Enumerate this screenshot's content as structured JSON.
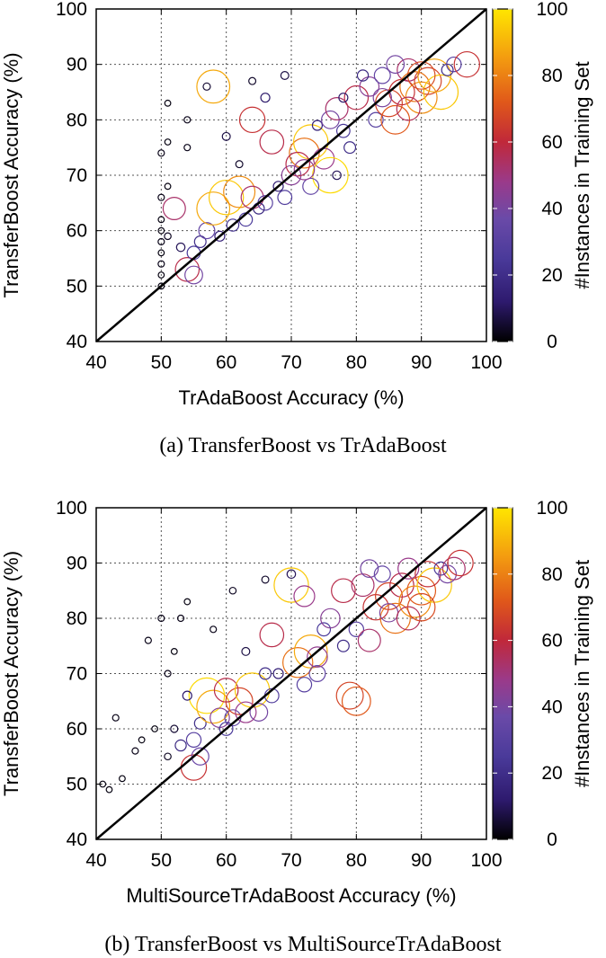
{
  "colorbar": {
    "label": "#Instances in Training Set",
    "ticks": [
      0,
      20,
      40,
      60,
      80,
      100
    ],
    "stops": [
      "#000000",
      "#2e1a6e",
      "#4a3a9a",
      "#6a4aa8",
      "#9a3a8a",
      "#c0283a",
      "#e0581a",
      "#f39a10",
      "#ffe600"
    ]
  },
  "charts": [
    {
      "caption": "(a)  TransferBoost vs TrAdaBoost",
      "xlabel": "TrAdaBoost Accuracy (%)",
      "ylabel": "TransferBoost Accuracy (%)",
      "xticks": [
        40,
        50,
        60,
        70,
        80,
        90,
        100
      ],
      "yticks": [
        40,
        50,
        60,
        70,
        80,
        90,
        100
      ]
    },
    {
      "caption": "(b)  TransferBoost vs MultiSourceTrAdaBoost",
      "xlabel": "MultiSourceTrAdaBoost Accuracy (%)",
      "ylabel": "TransferBoost Accuracy (%)",
      "xticks": [
        40,
        50,
        60,
        70,
        80,
        90,
        100
      ],
      "yticks": [
        40,
        50,
        60,
        70,
        80,
        90,
        100
      ]
    }
  ],
  "chart_data": [
    {
      "type": "scatter",
      "title": "",
      "xlabel": "TrAdaBoost Accuracy (%)",
      "ylabel": "TransferBoost Accuracy (%)",
      "xlim": [
        40,
        100
      ],
      "ylim": [
        40,
        100
      ],
      "grid": true,
      "reference_line": "y = x",
      "color_scale": {
        "label": "#Instances in Training Set",
        "range": [
          0,
          100
        ]
      },
      "points": [
        {
          "x": 50,
          "y": 50,
          "n": 2
        },
        {
          "x": 50,
          "y": 52,
          "n": 2
        },
        {
          "x": 50,
          "y": 54,
          "n": 3
        },
        {
          "x": 50,
          "y": 56,
          "n": 2
        },
        {
          "x": 50,
          "y": 58,
          "n": 3
        },
        {
          "x": 50,
          "y": 60,
          "n": 2
        },
        {
          "x": 51,
          "y": 59,
          "n": 4
        },
        {
          "x": 50,
          "y": 62,
          "n": 2
        },
        {
          "x": 50,
          "y": 66,
          "n": 3
        },
        {
          "x": 51,
          "y": 68,
          "n": 2
        },
        {
          "x": 50,
          "y": 74,
          "n": 3
        },
        {
          "x": 51,
          "y": 76,
          "n": 2
        },
        {
          "x": 51,
          "y": 83,
          "n": 2
        },
        {
          "x": 54,
          "y": 80,
          "n": 3
        },
        {
          "x": 54,
          "y": 75,
          "n": 3
        },
        {
          "x": 57,
          "y": 86,
          "n": 6
        },
        {
          "x": 58,
          "y": 86,
          "n": 90
        },
        {
          "x": 64,
          "y": 87,
          "n": 5
        },
        {
          "x": 69,
          "y": 88,
          "n": 8
        },
        {
          "x": 66,
          "y": 84,
          "n": 12
        },
        {
          "x": 54,
          "y": 53,
          "n": 60
        },
        {
          "x": 55,
          "y": 52,
          "n": 40
        },
        {
          "x": 56,
          "y": 58,
          "n": 20
        },
        {
          "x": 57,
          "y": 60,
          "n": 35
        },
        {
          "x": 58,
          "y": 64,
          "n": 90
        },
        {
          "x": 60,
          "y": 66,
          "n": 95
        },
        {
          "x": 62,
          "y": 67,
          "n": 85
        },
        {
          "x": 63,
          "y": 62,
          "n": 25
        },
        {
          "x": 64,
          "y": 66,
          "n": 55
        },
        {
          "x": 66,
          "y": 65,
          "n": 30
        },
        {
          "x": 68,
          "y": 68,
          "n": 15
        },
        {
          "x": 70,
          "y": 70,
          "n": 45
        },
        {
          "x": 72,
          "y": 74,
          "n": 80
        },
        {
          "x": 73,
          "y": 76,
          "n": 95
        },
        {
          "x": 75,
          "y": 73,
          "n": 50
        },
        {
          "x": 76,
          "y": 70,
          "n": 98
        },
        {
          "x": 73,
          "y": 68,
          "n": 35
        },
        {
          "x": 71,
          "y": 72,
          "n": 60
        },
        {
          "x": 74,
          "y": 79,
          "n": 15
        },
        {
          "x": 76,
          "y": 80,
          "n": 40
        },
        {
          "x": 77,
          "y": 82,
          "n": 55
        },
        {
          "x": 78,
          "y": 78,
          "n": 25
        },
        {
          "x": 80,
          "y": 84,
          "n": 60
        },
        {
          "x": 82,
          "y": 86,
          "n": 45
        },
        {
          "x": 83,
          "y": 80,
          "n": 30
        },
        {
          "x": 84,
          "y": 88,
          "n": 35
        },
        {
          "x": 85,
          "y": 83,
          "n": 70
        },
        {
          "x": 86,
          "y": 80,
          "n": 75
        },
        {
          "x": 87,
          "y": 85,
          "n": 65
        },
        {
          "x": 88,
          "y": 89,
          "n": 55
        },
        {
          "x": 89,
          "y": 86,
          "n": 80
        },
        {
          "x": 90,
          "y": 84,
          "n": 85
        },
        {
          "x": 91,
          "y": 87,
          "n": 70
        },
        {
          "x": 92,
          "y": 88,
          "n": 90
        },
        {
          "x": 93,
          "y": 85,
          "n": 95
        },
        {
          "x": 94,
          "y": 89,
          "n": 20
        },
        {
          "x": 95,
          "y": 90,
          "n": 30
        },
        {
          "x": 97,
          "y": 90,
          "n": 65
        },
        {
          "x": 86,
          "y": 90,
          "n": 40
        },
        {
          "x": 81,
          "y": 88,
          "n": 18
        },
        {
          "x": 79,
          "y": 75,
          "n": 20
        },
        {
          "x": 77,
          "y": 70,
          "n": 10
        },
        {
          "x": 67,
          "y": 76,
          "n": 60
        },
        {
          "x": 64,
          "y": 80,
          "n": 65
        },
        {
          "x": 62,
          "y": 72,
          "n": 5
        },
        {
          "x": 60,
          "y": 77,
          "n": 8
        },
        {
          "x": 52,
          "y": 64,
          "n": 55
        },
        {
          "x": 53,
          "y": 57,
          "n": 10
        },
        {
          "x": 55,
          "y": 56,
          "n": 25
        },
        {
          "x": 59,
          "y": 59,
          "n": 15
        },
        {
          "x": 61,
          "y": 61,
          "n": 22
        },
        {
          "x": 65,
          "y": 64,
          "n": 18
        },
        {
          "x": 69,
          "y": 66,
          "n": 28
        },
        {
          "x": 72,
          "y": 71,
          "n": 48
        },
        {
          "x": 78,
          "y": 84,
          "n": 12
        },
        {
          "x": 84,
          "y": 84,
          "n": 42
        },
        {
          "x": 88,
          "y": 82,
          "n": 58
        },
        {
          "x": 90,
          "y": 88,
          "n": 72
        }
      ]
    },
    {
      "type": "scatter",
      "title": "",
      "xlabel": "MultiSourceTrAdaBoost Accuracy (%)",
      "ylabel": "TransferBoost Accuracy (%)",
      "xlim": [
        40,
        100
      ],
      "ylim": [
        40,
        100
      ],
      "grid": true,
      "reference_line": "y = x",
      "color_scale": {
        "label": "#Instances in Training Set",
        "range": [
          0,
          100
        ]
      },
      "points": [
        {
          "x": 41,
          "y": 50,
          "n": 2
        },
        {
          "x": 42,
          "y": 49,
          "n": 2
        },
        {
          "x": 43,
          "y": 62,
          "n": 3
        },
        {
          "x": 44,
          "y": 51,
          "n": 2
        },
        {
          "x": 46,
          "y": 56,
          "n": 3
        },
        {
          "x": 47,
          "y": 58,
          "n": 2
        },
        {
          "x": 48,
          "y": 76,
          "n": 3
        },
        {
          "x": 49,
          "y": 60,
          "n": 2
        },
        {
          "x": 50,
          "y": 80,
          "n": 3
        },
        {
          "x": 51,
          "y": 55,
          "n": 4
        },
        {
          "x": 51,
          "y": 70,
          "n": 3
        },
        {
          "x": 52,
          "y": 74,
          "n": 2
        },
        {
          "x": 53,
          "y": 80,
          "n": 3
        },
        {
          "x": 54,
          "y": 83,
          "n": 2
        },
        {
          "x": 55,
          "y": 53,
          "n": 65
        },
        {
          "x": 55,
          "y": 58,
          "n": 30
        },
        {
          "x": 56,
          "y": 61,
          "n": 20
        },
        {
          "x": 57,
          "y": 66,
          "n": 98
        },
        {
          "x": 58,
          "y": 64,
          "n": 90
        },
        {
          "x": 59,
          "y": 62,
          "n": 45
        },
        {
          "x": 60,
          "y": 67,
          "n": 60
        },
        {
          "x": 61,
          "y": 62,
          "n": 35
        },
        {
          "x": 62,
          "y": 65,
          "n": 70
        },
        {
          "x": 64,
          "y": 67,
          "n": 95
        },
        {
          "x": 65,
          "y": 63,
          "n": 40
        },
        {
          "x": 66,
          "y": 70,
          "n": 20
        },
        {
          "x": 66,
          "y": 87,
          "n": 5
        },
        {
          "x": 70,
          "y": 88,
          "n": 10
        },
        {
          "x": 70,
          "y": 86,
          "n": 95
        },
        {
          "x": 72,
          "y": 84,
          "n": 50
        },
        {
          "x": 71,
          "y": 72,
          "n": 80
        },
        {
          "x": 73,
          "y": 74,
          "n": 90
        },
        {
          "x": 74,
          "y": 70,
          "n": 35
        },
        {
          "x": 75,
          "y": 78,
          "n": 25
        },
        {
          "x": 76,
          "y": 80,
          "n": 45
        },
        {
          "x": 78,
          "y": 85,
          "n": 60
        },
        {
          "x": 79,
          "y": 66,
          "n": 70
        },
        {
          "x": 80,
          "y": 65,
          "n": 75
        },
        {
          "x": 80,
          "y": 78,
          "n": 30
        },
        {
          "x": 81,
          "y": 86,
          "n": 55
        },
        {
          "x": 82,
          "y": 89,
          "n": 40
        },
        {
          "x": 83,
          "y": 82,
          "n": 65
        },
        {
          "x": 84,
          "y": 88,
          "n": 35
        },
        {
          "x": 85,
          "y": 84,
          "n": 70
        },
        {
          "x": 86,
          "y": 80,
          "n": 80
        },
        {
          "x": 87,
          "y": 86,
          "n": 60
        },
        {
          "x": 88,
          "y": 89,
          "n": 50
        },
        {
          "x": 89,
          "y": 83,
          "n": 85
        },
        {
          "x": 90,
          "y": 85,
          "n": 75
        },
        {
          "x": 91,
          "y": 88,
          "n": 65
        },
        {
          "x": 92,
          "y": 86,
          "n": 95
        },
        {
          "x": 93,
          "y": 89,
          "n": 25
        },
        {
          "x": 94,
          "y": 88,
          "n": 40
        },
        {
          "x": 95,
          "y": 89,
          "n": 55
        },
        {
          "x": 96,
          "y": 90,
          "n": 65
        },
        {
          "x": 82,
          "y": 76,
          "n": 55
        },
        {
          "x": 78,
          "y": 75,
          "n": 20
        },
        {
          "x": 72,
          "y": 68,
          "n": 30
        },
        {
          "x": 68,
          "y": 70,
          "n": 15
        },
        {
          "x": 67,
          "y": 77,
          "n": 60
        },
        {
          "x": 63,
          "y": 74,
          "n": 8
        },
        {
          "x": 61,
          "y": 85,
          "n": 4
        },
        {
          "x": 58,
          "y": 78,
          "n": 3
        },
        {
          "x": 54,
          "y": 66,
          "n": 12
        },
        {
          "x": 52,
          "y": 60,
          "n": 6
        },
        {
          "x": 53,
          "y": 57,
          "n": 18
        },
        {
          "x": 56,
          "y": 55,
          "n": 38
        },
        {
          "x": 60,
          "y": 60,
          "n": 25
        },
        {
          "x": 63,
          "y": 63,
          "n": 50
        },
        {
          "x": 67,
          "y": 66,
          "n": 28
        },
        {
          "x": 74,
          "y": 73,
          "n": 48
        },
        {
          "x": 85,
          "y": 81,
          "n": 42
        },
        {
          "x": 88,
          "y": 80,
          "n": 58
        },
        {
          "x": 90,
          "y": 82,
          "n": 72
        }
      ]
    }
  ]
}
